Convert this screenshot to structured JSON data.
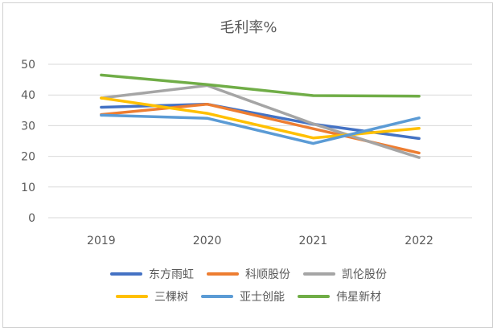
{
  "chart_data": {
    "type": "line",
    "title": "毛利率%",
    "x": [
      "2019",
      "2020",
      "2021",
      "2022"
    ],
    "ylim": [
      0,
      50
    ],
    "yticks": [
      0,
      10,
      20,
      30,
      40,
      50
    ],
    "grid": true,
    "legend_position": "bottom",
    "series": [
      {
        "name": "东方雨虹",
        "color": "#4472C4",
        "values": [
          36,
          37,
          30.5,
          25.8
        ]
      },
      {
        "name": "科顺股份",
        "color": "#ED7D31",
        "values": [
          33.6,
          37,
          29,
          21.1
        ]
      },
      {
        "name": "凯伦股份",
        "color": "#A5A5A5",
        "values": [
          39,
          43.1,
          30.6,
          19.6
        ]
      },
      {
        "name": "三棵树",
        "color": "#FFC000",
        "values": [
          39,
          34,
          26,
          29.1
        ]
      },
      {
        "name": "亚士创能",
        "color": "#5B9BD5",
        "values": [
          33.4,
          32.4,
          24.2,
          32.5
        ]
      },
      {
        "name": "伟星新材",
        "color": "#70AD47",
        "values": [
          46.5,
          43.4,
          39.8,
          39.6
        ]
      }
    ]
  }
}
